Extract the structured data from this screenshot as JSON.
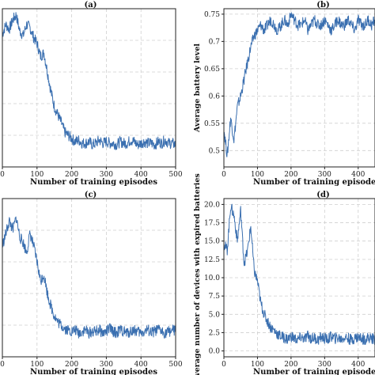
{
  "chart_data": [
    {
      "type": "line",
      "title": "(a)",
      "xlabel": "Number of training episodes",
      "ylabel": "",
      "xlim": [
        0,
        500
      ],
      "xticks": [
        0,
        100,
        200,
        300,
        400,
        500
      ],
      "ylim": [
        0,
        1
      ],
      "yticks": [],
      "grid": true,
      "series": [
        {
          "color": "#3a6fb0",
          "values": [
            0.84,
            0.9,
            0.87,
            0.93,
            0.96,
            0.86,
            0.83,
            0.9,
            0.88,
            0.82,
            0.78,
            0.7,
            0.72,
            0.6,
            0.48,
            0.38,
            0.33,
            0.28,
            0.22,
            0.2,
            0.18,
            0.16,
            0.17,
            0.15,
            0.15,
            0.16,
            0.14,
            0.15,
            0.17,
            0.15,
            0.16,
            0.15,
            0.15,
            0.14,
            0.16,
            0.15,
            0.15,
            0.17,
            0.16,
            0.14,
            0.15,
            0.16,
            0.15,
            0.15,
            0.14,
            0.16,
            0.15,
            0.17,
            0.15,
            0.15,
            0.14
          ]
        }
      ]
    },
    {
      "type": "line",
      "title": "(b)",
      "xlabel": "Number of training episodes",
      "ylabel": "Average battery level",
      "xlim": [
        0,
        450
      ],
      "xticks": [
        0,
        100,
        200,
        300,
        400
      ],
      "ylim": [
        0.47,
        0.76
      ],
      "yticks": [
        0.5,
        0.55,
        0.6,
        0.65,
        0.7,
        0.75
      ],
      "grid": true,
      "series": [
        {
          "color": "#3a6fb0",
          "values": [
            0.54,
            0.49,
            0.56,
            0.52,
            0.58,
            0.6,
            0.63,
            0.66,
            0.69,
            0.71,
            0.72,
            0.73,
            0.72,
            0.73,
            0.74,
            0.73,
            0.72,
            0.73,
            0.74,
            0.73,
            0.75,
            0.74,
            0.73,
            0.73,
            0.74,
            0.72,
            0.73,
            0.74,
            0.73,
            0.73,
            0.74,
            0.73,
            0.72,
            0.73,
            0.74,
            0.73,
            0.73,
            0.74,
            0.73,
            0.72,
            0.74,
            0.73,
            0.73,
            0.74,
            0.73,
            0.74
          ]
        }
      ]
    },
    {
      "type": "line",
      "title": "(c)",
      "xlabel": "Number of training episodes",
      "ylabel": "",
      "xlim": [
        0,
        500
      ],
      "xticks": [
        0,
        100,
        200,
        300,
        400,
        500
      ],
      "ylim": [
        0,
        1
      ],
      "yticks": [],
      "grid": true,
      "series": [
        {
          "color": "#3a6fb0",
          "values": [
            0.7,
            0.78,
            0.86,
            0.8,
            0.88,
            0.76,
            0.72,
            0.66,
            0.78,
            0.7,
            0.6,
            0.48,
            0.52,
            0.4,
            0.32,
            0.26,
            0.22,
            0.2,
            0.18,
            0.17,
            0.16,
            0.17,
            0.15,
            0.16,
            0.17,
            0.15,
            0.16,
            0.16,
            0.17,
            0.15,
            0.16,
            0.18,
            0.16,
            0.15,
            0.17,
            0.16,
            0.15,
            0.16,
            0.17,
            0.16,
            0.15,
            0.16,
            0.17,
            0.15,
            0.16,
            0.17,
            0.16,
            0.15,
            0.16,
            0.17,
            0.16
          ]
        }
      ]
    },
    {
      "type": "line",
      "title": "(d)",
      "xlabel": "Number of training episodes",
      "ylabel": "Average number of devices with expired batteries",
      "xlim": [
        0,
        450
      ],
      "xticks": [
        0,
        100,
        200,
        300,
        400
      ],
      "ylim": [
        -0.8,
        20.8
      ],
      "yticks": [
        0.0,
        2.5,
        5.0,
        7.5,
        10.0,
        12.5,
        15.0,
        17.5,
        20.0
      ],
      "ytick_labels": [
        "0.0",
        "2.5",
        "5.0",
        "7.5",
        "10.0",
        "12.5",
        "15.0",
        "17.5",
        "20.0"
      ],
      "grid": true,
      "series": [
        {
          "color": "#3a6fb0",
          "values": [
            14.5,
            13.8,
            19.8,
            18.5,
            15.0,
            19.2,
            12.0,
            13.5,
            17.0,
            11.0,
            9.5,
            6.5,
            5.0,
            4.0,
            3.2,
            2.8,
            2.3,
            2.0,
            1.8,
            1.6,
            2.0,
            1.7,
            1.5,
            1.9,
            1.6,
            2.1,
            1.7,
            1.8,
            1.5,
            1.9,
            1.7,
            1.6,
            2.0,
            1.7,
            1.8,
            1.6,
            1.9,
            1.7,
            1.5,
            1.8,
            1.9,
            1.7,
            1.6,
            1.8,
            1.7,
            1.6
          ]
        }
      ]
    }
  ]
}
